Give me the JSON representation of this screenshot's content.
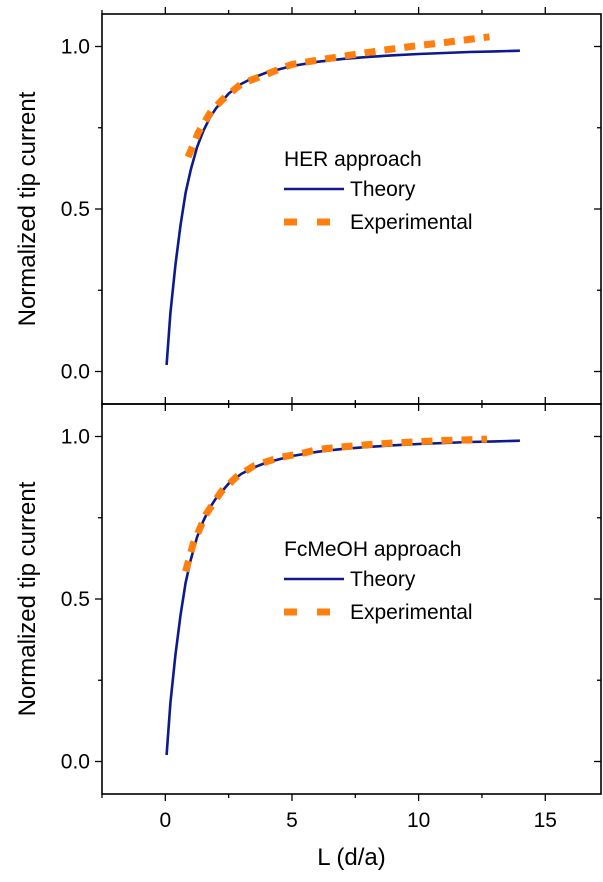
{
  "figure": {
    "xlabel": "L (d/a)"
  },
  "chart_data": [
    {
      "type": "line",
      "title": "",
      "ylabel": "Normalized tip current",
      "xlabel": "",
      "xlim": [
        -2.5,
        17.2
      ],
      "ylim": [
        -0.1,
        1.1
      ],
      "xticks": [
        0,
        5,
        10,
        15
      ],
      "yticks": [
        0.0,
        0.5,
        1.0
      ],
      "ytick_labels": [
        "0.0",
        "0.5",
        "1.0"
      ],
      "grid": false,
      "legend": {
        "title": "HER approach",
        "position": "center-right",
        "entries": [
          "Theory",
          "Experimental"
        ]
      },
      "series": [
        {
          "name": "Theory",
          "style": "solid",
          "color": "#0d1a8c",
          "x": [
            0.05,
            0.2,
            0.4,
            0.6,
            0.8,
            1.0,
            1.25,
            1.5,
            1.75,
            2.0,
            2.5,
            3.0,
            3.5,
            4.0,
            5.0,
            6.0,
            7.0,
            8.0,
            9.0,
            10.0,
            11.0,
            12.0,
            13.0,
            14.0
          ],
          "y": [
            0.02,
            0.18,
            0.33,
            0.45,
            0.55,
            0.62,
            0.69,
            0.74,
            0.78,
            0.81,
            0.855,
            0.885,
            0.905,
            0.92,
            0.94,
            0.953,
            0.962,
            0.968,
            0.973,
            0.977,
            0.98,
            0.983,
            0.985,
            0.987
          ]
        },
        {
          "name": "Experimental",
          "style": "dashed",
          "color": "#ff7f0e",
          "x": [
            0.9,
            1.3,
            1.8,
            2.3,
            3.0,
            4.0,
            5.0,
            6.0,
            7.0,
            8.0,
            9.0,
            10.0,
            11.0,
            12.0,
            12.8
          ],
          "y": [
            0.66,
            0.735,
            0.8,
            0.84,
            0.885,
            0.915,
            0.945,
            0.958,
            0.97,
            0.982,
            0.993,
            1.003,
            1.012,
            1.022,
            1.03
          ]
        }
      ]
    },
    {
      "type": "line",
      "title": "",
      "ylabel": "Normalized tip current",
      "xlabel": "L (d/a)",
      "xlim": [
        -2.5,
        17.2
      ],
      "ylim": [
        -0.1,
        1.1
      ],
      "xticks": [
        0,
        5,
        10,
        15
      ],
      "yticks": [
        0.0,
        0.5,
        1.0
      ],
      "ytick_labels": [
        "0.0",
        "0.5",
        "1.0"
      ],
      "grid": false,
      "legend": {
        "title": "FcMeOH approach",
        "position": "center-right",
        "entries": [
          "Theory",
          "Experimental"
        ]
      },
      "series": [
        {
          "name": "Theory",
          "style": "solid",
          "color": "#0d1a8c",
          "x": [
            0.05,
            0.2,
            0.4,
            0.6,
            0.8,
            1.0,
            1.25,
            1.5,
            1.75,
            2.0,
            2.5,
            3.0,
            3.5,
            4.0,
            5.0,
            6.0,
            7.0,
            8.0,
            9.0,
            10.0,
            11.0,
            12.0,
            13.0,
            14.0
          ],
          "y": [
            0.02,
            0.18,
            0.33,
            0.45,
            0.55,
            0.62,
            0.69,
            0.74,
            0.78,
            0.81,
            0.855,
            0.885,
            0.905,
            0.92,
            0.94,
            0.953,
            0.962,
            0.968,
            0.973,
            0.977,
            0.98,
            0.983,
            0.985,
            0.987
          ]
        },
        {
          "name": "Experimental",
          "style": "dashed",
          "color": "#ff7f0e",
          "x": [
            0.8,
            1.1,
            1.6,
            2.2,
            2.8,
            3.5,
            4.5,
            5.5,
            6.0,
            7.0,
            8.0,
            9.0,
            10.0,
            11.0,
            12.0,
            12.7
          ],
          "y": [
            0.585,
            0.67,
            0.76,
            0.83,
            0.875,
            0.91,
            0.935,
            0.95,
            0.96,
            0.968,
            0.975,
            0.98,
            0.984,
            0.988,
            0.99,
            0.992
          ]
        }
      ]
    }
  ]
}
